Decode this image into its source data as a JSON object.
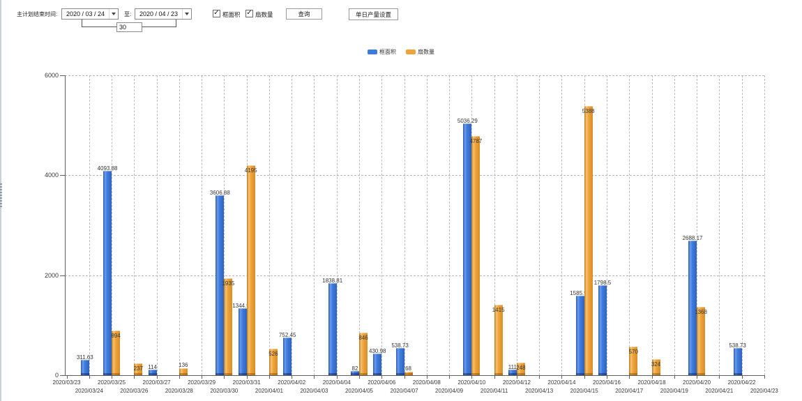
{
  "toolbar": {
    "label_plan_end": "主计划结束时间:",
    "date_from": "2020 / 03 / 24",
    "label_to": "至:",
    "date_to": "2020 / 04 / 23",
    "day_offset": "30",
    "checkbox_area_label": "框面积",
    "checkbox_fans_label": "扇数量",
    "query_button": "查询",
    "daily_output_button": "单日产量设置"
  },
  "legend": [
    {
      "label": "框面积",
      "color": "#3b7cdb"
    },
    {
      "label": "扇数量",
      "color": "#f0a43c"
    }
  ],
  "chart_data": {
    "type": "bar",
    "title": "",
    "xlabel": "",
    "ylabel": "",
    "ylim": [
      0,
      6000
    ],
    "yticks": [
      0,
      2000,
      4000,
      6000
    ],
    "grid": true,
    "legend_position": "top",
    "categories": [
      "2020/03/23",
      "2020/03/24",
      "2020/03/25",
      "2020/03/26",
      "2020/03/27",
      "2020/03/28",
      "2020/03/29",
      "2020/03/30",
      "2020/03/31",
      "2020/04/01",
      "2020/04/02",
      "2020/04/03",
      "2020/04/04",
      "2020/04/05",
      "2020/04/06",
      "2020/04/07",
      "2020/04/08",
      "2020/04/09",
      "2020/04/10",
      "2020/04/11",
      "2020/04/12",
      "2020/04/13",
      "2020/04/14",
      "2020/04/15",
      "2020/04/16",
      "2020/04/17",
      "2020/04/18",
      "2020/04/19",
      "2020/04/20",
      "2020/04/21",
      "2020/04/22",
      "2020/04/23"
    ],
    "series": [
      {
        "name": "框面积",
        "color": "#3b7cdb",
        "values": [
          null,
          311.63,
          4093.88,
          null,
          114,
          null,
          null,
          3606.88,
          1344.95,
          null,
          752.45,
          null,
          1838.81,
          82,
          430.98,
          538.73,
          null,
          null,
          5036.29,
          null,
          111,
          null,
          null,
          1585.96,
          1798.5,
          null,
          null,
          null,
          2688.17,
          null,
          538.73,
          null
        ]
      },
      {
        "name": "扇数量",
        "color": "#f0a43c",
        "values": [
          null,
          null,
          894,
          237,
          null,
          136,
          null,
          1935,
          4195,
          526,
          null,
          null,
          null,
          846,
          null,
          68,
          null,
          null,
          4787,
          1415,
          248,
          null,
          null,
          5388,
          null,
          570,
          324,
          null,
          1368,
          null,
          null,
          null
        ]
      }
    ]
  }
}
